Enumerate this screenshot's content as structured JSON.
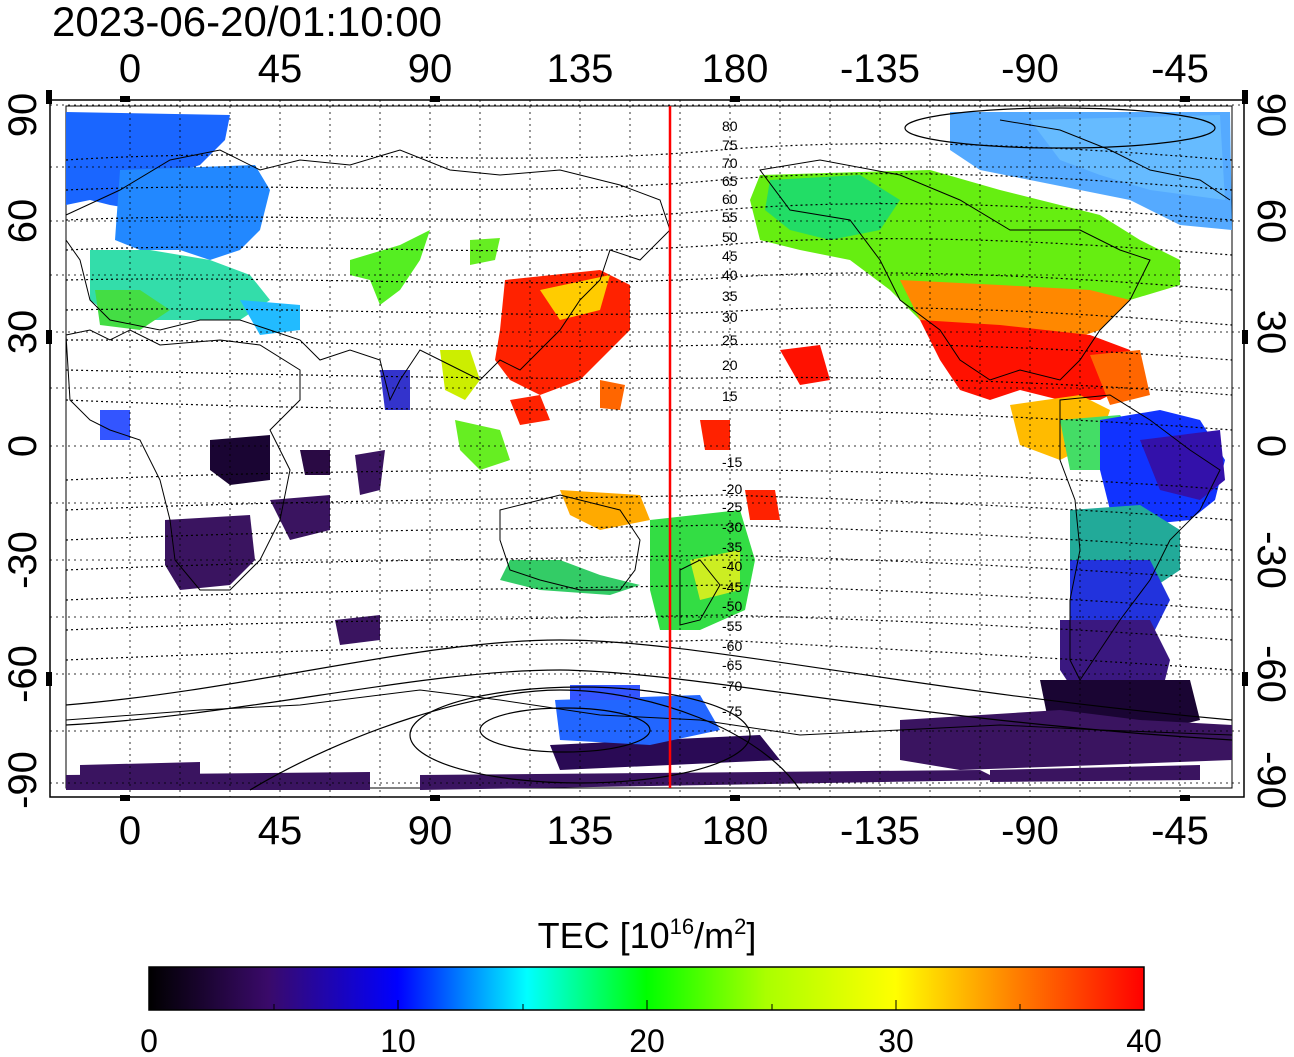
{
  "timestamp": "2023-06-20/01:10:00",
  "map": {
    "lon_ticks_top": [
      "0",
      "45",
      "90",
      "135",
      "180",
      "-135",
      "-90",
      "-45"
    ],
    "lon_ticks_bottom": [
      "0",
      "45",
      "90",
      "135",
      "180",
      "-135",
      "-90",
      "-45"
    ],
    "lat_ticks_left": [
      "90",
      "60",
      "30",
      "0",
      "-30",
      "-60",
      "-90"
    ],
    "lat_ticks_right": [
      "90",
      "60",
      "30",
      "0",
      "-30",
      "-60",
      "-90"
    ],
    "contour_labels": [
      "80",
      "75",
      "70",
      "65",
      "60",
      "55",
      "50",
      "45",
      "40",
      "35",
      "30",
      "25",
      "20",
      "15",
      "-15",
      "-20",
      "-25",
      "-30",
      "-35",
      "-40",
      "-45",
      "-50",
      "-55",
      "-60",
      "-65",
      "-70",
      "-75"
    ],
    "terminator_color": "#ff0000"
  },
  "colorbar": {
    "title_prefix": "TEC  [10",
    "title_exp1": "16",
    "title_mid": "/m",
    "title_exp2": "2",
    "title_suffix": "]",
    "ticks": [
      "0",
      "10",
      "20",
      "30",
      "40"
    ],
    "range": [
      0,
      40
    ],
    "colors": [
      "#000000",
      "#3a0a6a",
      "#0000ff",
      "#00ffff",
      "#00ff00",
      "#ffff00",
      "#ff8000",
      "#ff0000"
    ]
  }
}
